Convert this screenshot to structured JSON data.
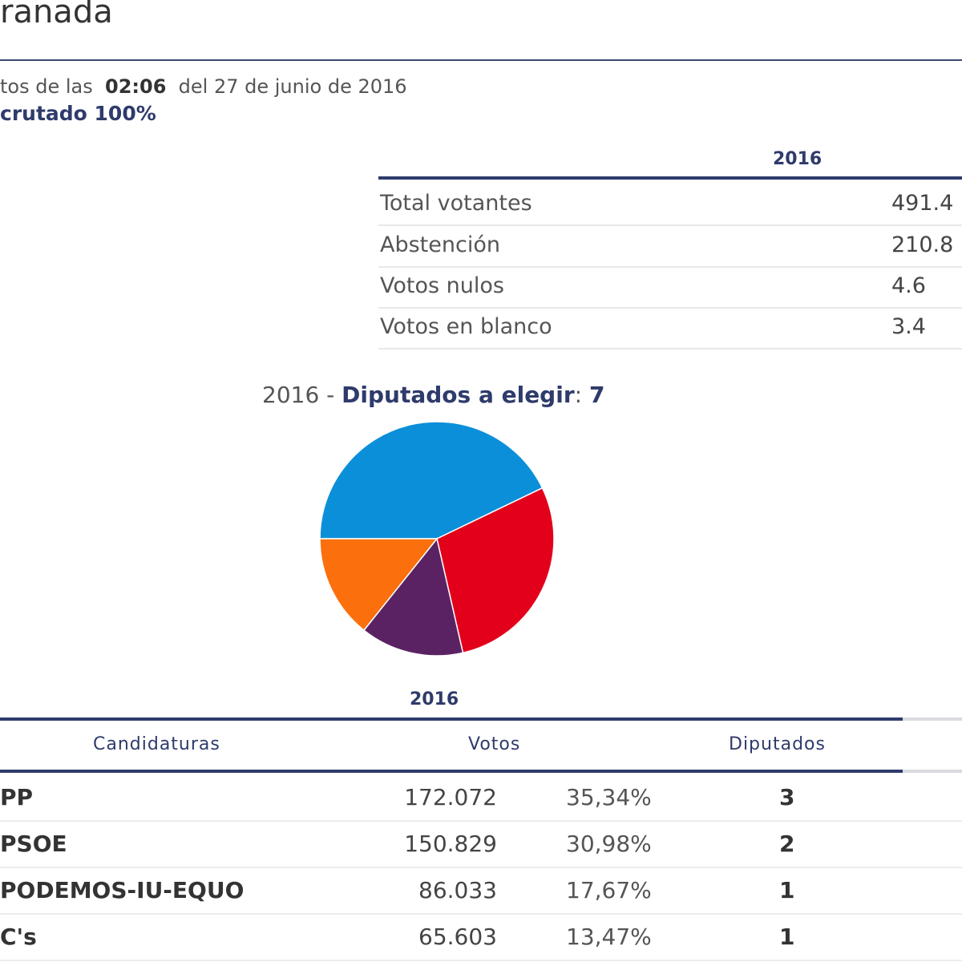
{
  "header": {
    "title": "ranada",
    "update_prefix": "tos de las",
    "update_time": "02:06",
    "update_date": "del 27 de junio de 2016",
    "escrutado": "crutado 100%"
  },
  "summary": {
    "year": "2016",
    "rows": [
      {
        "label": "Total votantes",
        "value": "491.4"
      },
      {
        "label": "Abstención",
        "value": "210.8"
      },
      {
        "label": "Votos nulos",
        "value": "4.6"
      },
      {
        "label": "Votos en blanco",
        "value": "3.4"
      }
    ]
  },
  "chart_title": {
    "year": "2016",
    "separator": " - ",
    "label": "Diputados a elegir",
    "colon": ": ",
    "seats": "7"
  },
  "chart_data": {
    "type": "pie",
    "title": "2016 - Diputados a elegir: 7",
    "categories": [
      "PP",
      "PSOE",
      "PODEMOS-IU-EQUO",
      "C's"
    ],
    "values": [
      3,
      2,
      1,
      1
    ],
    "colors": [
      "#0b8fd9",
      "#e3001b",
      "#5b2263",
      "#fb6f0d"
    ],
    "slice_border": "#ffffff"
  },
  "results": {
    "year": "2016",
    "columns": {
      "candidaturas": "Candidaturas",
      "votos": "Votos",
      "diputados": "Diputados"
    },
    "rows": [
      {
        "party": "PP",
        "votes": "172.072",
        "pct": "35,34%",
        "seats": "3"
      },
      {
        "party": "PSOE",
        "votes": "150.829",
        "pct": "30,98%",
        "seats": "2"
      },
      {
        "party": "PODEMOS-IU-EQUO",
        "votes": "86.033",
        "pct": "17,67%",
        "seats": "1"
      },
      {
        "party": "C's",
        "votes": "65.603",
        "pct": "13,47%",
        "seats": "1"
      }
    ]
  }
}
